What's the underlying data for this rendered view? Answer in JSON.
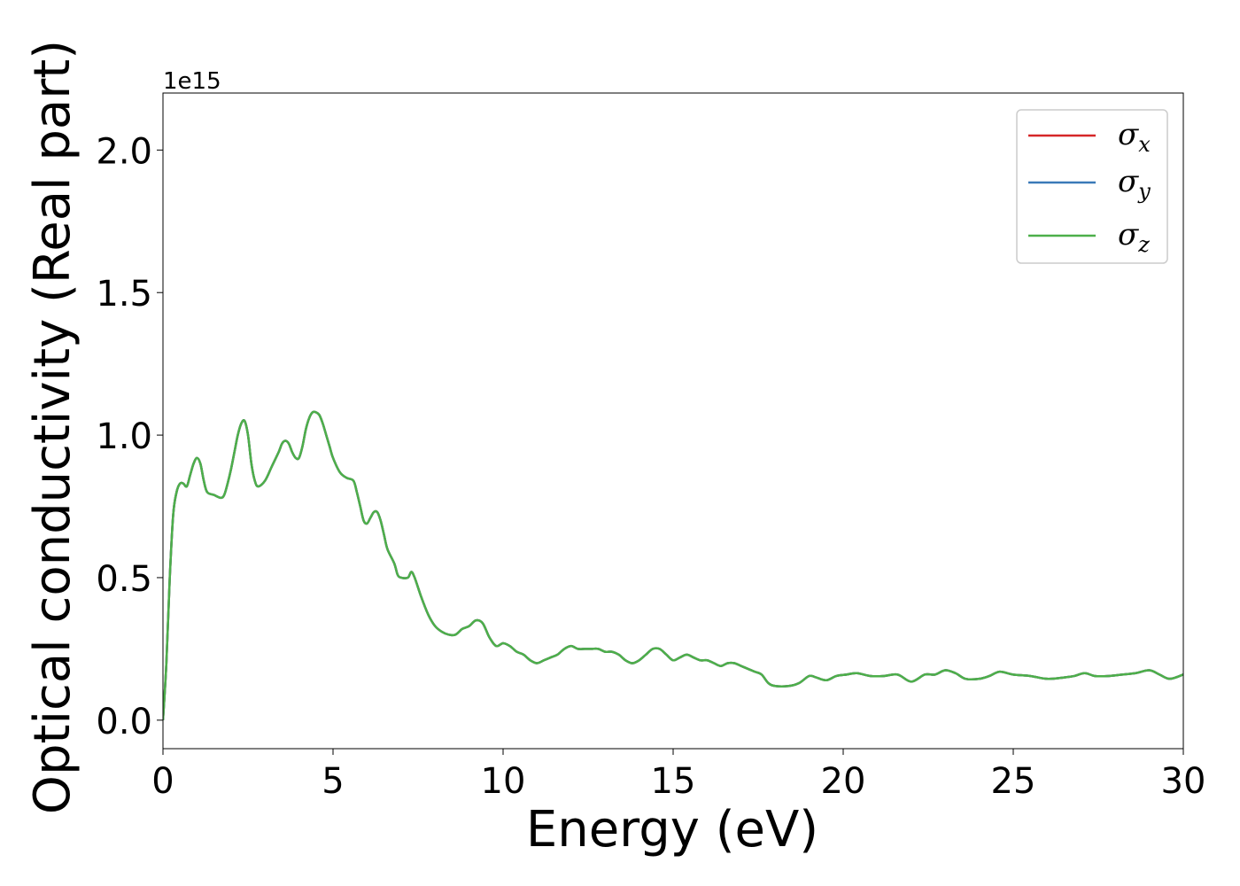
{
  "chart_data": {
    "type": "line",
    "xlabel": "Energy (eV)",
    "ylabel": "Optical conductivity (Real part)",
    "y_offset_label": "1e15",
    "xlim": [
      0,
      30
    ],
    "ylim": [
      -0.1,
      2.2
    ],
    "xticks": [
      {
        "value": 0,
        "label": "0"
      },
      {
        "value": 5,
        "label": "5"
      },
      {
        "value": 10,
        "label": "10"
      },
      {
        "value": 15,
        "label": "15"
      },
      {
        "value": 20,
        "label": "20"
      },
      {
        "value": 25,
        "label": "25"
      },
      {
        "value": 30,
        "label": "30"
      }
    ],
    "yticks": [
      {
        "value": 0.0,
        "label": "0.0"
      },
      {
        "value": 0.5,
        "label": "0.5"
      },
      {
        "value": 1.0,
        "label": "1.0"
      },
      {
        "value": 1.5,
        "label": "1.5"
      },
      {
        "value": 2.0,
        "label": "2.0"
      }
    ],
    "grid": false,
    "legend_position": "top-right",
    "series": [
      {
        "name": "σx",
        "symbol": "σ",
        "subscript": "x",
        "color": "#d62728",
        "values_ref": "shared"
      },
      {
        "name": "σy",
        "symbol": "σ",
        "subscript": "y",
        "color": "#3a7ab8",
        "values_ref": "shared"
      },
      {
        "name": "σz",
        "symbol": "σ",
        "subscript": "z",
        "color": "#4daf4a",
        "values_ref": "shared"
      }
    ],
    "shared_points": [
      [
        0.0,
        0.0
      ],
      [
        0.1,
        0.2
      ],
      [
        0.2,
        0.5
      ],
      [
        0.3,
        0.72
      ],
      [
        0.4,
        0.8
      ],
      [
        0.5,
        0.83
      ],
      [
        0.6,
        0.83
      ],
      [
        0.7,
        0.82
      ],
      [
        0.8,
        0.86
      ],
      [
        0.9,
        0.9
      ],
      [
        1.0,
        0.92
      ],
      [
        1.1,
        0.9
      ],
      [
        1.2,
        0.84
      ],
      [
        1.3,
        0.8
      ],
      [
        1.5,
        0.79
      ],
      [
        1.7,
        0.78
      ],
      [
        1.8,
        0.79
      ],
      [
        1.9,
        0.83
      ],
      [
        2.0,
        0.88
      ],
      [
        2.1,
        0.94
      ],
      [
        2.2,
        1.0
      ],
      [
        2.3,
        1.04
      ],
      [
        2.4,
        1.05
      ],
      [
        2.5,
        1.0
      ],
      [
        2.6,
        0.9
      ],
      [
        2.7,
        0.84
      ],
      [
        2.8,
        0.82
      ],
      [
        3.0,
        0.84
      ],
      [
        3.2,
        0.89
      ],
      [
        3.4,
        0.94
      ],
      [
        3.5,
        0.97
      ],
      [
        3.6,
        0.98
      ],
      [
        3.7,
        0.97
      ],
      [
        3.8,
        0.94
      ],
      [
        3.9,
        0.92
      ],
      [
        4.0,
        0.92
      ],
      [
        4.1,
        0.96
      ],
      [
        4.2,
        1.02
      ],
      [
        4.3,
        1.06
      ],
      [
        4.4,
        1.08
      ],
      [
        4.5,
        1.08
      ],
      [
        4.6,
        1.07
      ],
      [
        4.7,
        1.04
      ],
      [
        4.8,
        1.0
      ],
      [
        4.9,
        0.96
      ],
      [
        5.0,
        0.92
      ],
      [
        5.2,
        0.87
      ],
      [
        5.4,
        0.85
      ],
      [
        5.6,
        0.84
      ],
      [
        5.7,
        0.8
      ],
      [
        5.8,
        0.75
      ],
      [
        5.9,
        0.7
      ],
      [
        6.0,
        0.69
      ],
      [
        6.1,
        0.71
      ],
      [
        6.2,
        0.73
      ],
      [
        6.3,
        0.73
      ],
      [
        6.4,
        0.7
      ],
      [
        6.5,
        0.65
      ],
      [
        6.6,
        0.6
      ],
      [
        6.8,
        0.55
      ],
      [
        6.9,
        0.51
      ],
      [
        7.0,
        0.5
      ],
      [
        7.2,
        0.5
      ],
      [
        7.3,
        0.52
      ],
      [
        7.4,
        0.5
      ],
      [
        7.6,
        0.43
      ],
      [
        7.8,
        0.37
      ],
      [
        8.0,
        0.33
      ],
      [
        8.2,
        0.31
      ],
      [
        8.4,
        0.3
      ],
      [
        8.6,
        0.3
      ],
      [
        8.8,
        0.32
      ],
      [
        9.0,
        0.33
      ],
      [
        9.2,
        0.35
      ],
      [
        9.4,
        0.34
      ],
      [
        9.6,
        0.29
      ],
      [
        9.8,
        0.26
      ],
      [
        10.0,
        0.27
      ],
      [
        10.2,
        0.26
      ],
      [
        10.4,
        0.24
      ],
      [
        10.6,
        0.23
      ],
      [
        10.8,
        0.21
      ],
      [
        11.0,
        0.2
      ],
      [
        11.2,
        0.21
      ],
      [
        11.4,
        0.22
      ],
      [
        11.6,
        0.23
      ],
      [
        11.8,
        0.25
      ],
      [
        12.0,
        0.26
      ],
      [
        12.2,
        0.25
      ],
      [
        12.4,
        0.25
      ],
      [
        12.6,
        0.25
      ],
      [
        12.8,
        0.25
      ],
      [
        13.0,
        0.24
      ],
      [
        13.2,
        0.24
      ],
      [
        13.4,
        0.23
      ],
      [
        13.6,
        0.21
      ],
      [
        13.8,
        0.2
      ],
      [
        14.0,
        0.21
      ],
      [
        14.2,
        0.23
      ],
      [
        14.4,
        0.25
      ],
      [
        14.6,
        0.25
      ],
      [
        14.8,
        0.23
      ],
      [
        15.0,
        0.21
      ],
      [
        15.2,
        0.22
      ],
      [
        15.4,
        0.23
      ],
      [
        15.6,
        0.22
      ],
      [
        15.8,
        0.21
      ],
      [
        16.0,
        0.21
      ],
      [
        16.2,
        0.2
      ],
      [
        16.4,
        0.19
      ],
      [
        16.6,
        0.2
      ],
      [
        16.8,
        0.2
      ],
      [
        17.0,
        0.19
      ],
      [
        17.2,
        0.18
      ],
      [
        17.4,
        0.17
      ],
      [
        17.6,
        0.16
      ],
      [
        17.8,
        0.13
      ],
      [
        18.0,
        0.12
      ],
      [
        18.4,
        0.12
      ],
      [
        18.7,
        0.13
      ],
      [
        19.0,
        0.155
      ],
      [
        19.2,
        0.15
      ],
      [
        19.5,
        0.14
      ],
      [
        19.8,
        0.155
      ],
      [
        20.1,
        0.16
      ],
      [
        20.4,
        0.165
      ],
      [
        20.8,
        0.155
      ],
      [
        21.2,
        0.155
      ],
      [
        21.6,
        0.16
      ],
      [
        22.0,
        0.135
      ],
      [
        22.4,
        0.16
      ],
      [
        22.7,
        0.16
      ],
      [
        23.0,
        0.175
      ],
      [
        23.3,
        0.165
      ],
      [
        23.6,
        0.145
      ],
      [
        24.0,
        0.145
      ],
      [
        24.3,
        0.155
      ],
      [
        24.6,
        0.17
      ],
      [
        25.0,
        0.16
      ],
      [
        25.5,
        0.155
      ],
      [
        26.0,
        0.145
      ],
      [
        26.5,
        0.15
      ],
      [
        26.8,
        0.155
      ],
      [
        27.1,
        0.165
      ],
      [
        27.4,
        0.155
      ],
      [
        27.8,
        0.155
      ],
      [
        28.2,
        0.16
      ],
      [
        28.6,
        0.165
      ],
      [
        29.0,
        0.175
      ],
      [
        29.3,
        0.16
      ],
      [
        29.6,
        0.145
      ],
      [
        30.0,
        0.16
      ]
    ]
  }
}
